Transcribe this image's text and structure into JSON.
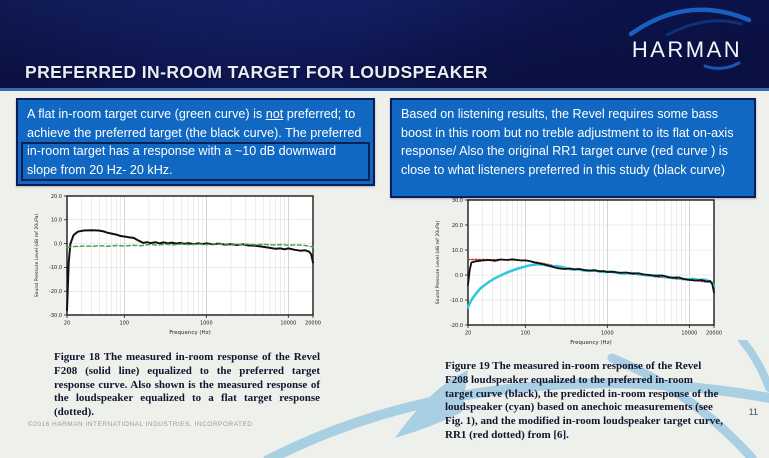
{
  "header": {
    "title": "PREFERRED IN-ROOM TARGET FOR LOUDSPEAKER",
    "brand": "HARMAN"
  },
  "callouts": {
    "left": {
      "text_before": "A flat in-room target curve (green curve) is ",
      "emphasis": "not",
      "text_after": " preferred; to achieve the preferred target (the black curve). The preferred in-room target  has a response with a ~10 dB downward slope from 20 Hz- 20 kHz."
    },
    "right": {
      "text": "Based on listening results, the Revel requires some bass boost in this room but no treble adjustment to its flat on-axis response/ Also the original RR1 target curve (red curve ) is close to what listeners preferred in this study (black curve)"
    }
  },
  "figures": [
    {
      "caption": "Figure 18 The measured in-room response of the Revel F208 (solid line) equalized to the preferred target response curve. Also shown is the measured response of the loudspeaker equalized to a flat target response (dotted)."
    },
    {
      "caption": "Figure 19 The measured in-room response of the Revel F208 loudspeaker equalized to the preferred in-room target curve (black), the predicted in-room response of the loudspeaker (cyan) based on anechoic measurements (see Fig. 1), and the modified in-room loudspeaker target curve, RR1 (red dotted) from [6]."
    }
  ],
  "footer": {
    "copyright": "©2016 HARMAN INTERNATIONAL INDUSTRIES, INCORPORATED",
    "page": "11"
  },
  "colors": {
    "header_bg": "#0c1550",
    "callout_bg": "#1068c2",
    "callout_border": "#0a1c5a",
    "accent_line": "#3a66b8",
    "swoosh": "#a9cfe3",
    "logo_arc": "#1a63c8"
  },
  "chart_data": [
    {
      "type": "line",
      "title": "",
      "xlabel": "Frequency (Hz)",
      "ylabel": "Sound Pressure Level (dB ref 20uPa)",
      "x_scale": "log",
      "xlim": [
        20,
        20000
      ],
      "ylim": [
        -30,
        20
      ],
      "x_ticks": [
        20,
        100,
        1000,
        10000,
        20000
      ],
      "y_ticks": [
        20,
        10,
        0,
        -10,
        -20,
        -30
      ],
      "grid": true,
      "legend": "none",
      "series": [
        {
          "name": "F208 equalized to preferred target (solid black)",
          "color": "#111111",
          "style": "solid",
          "width": 2,
          "points": [
            [
              20,
              -28
            ],
            [
              21,
              -8
            ],
            [
              22,
              0
            ],
            [
              24,
              3.5
            ],
            [
              27,
              5
            ],
            [
              32,
              5.5
            ],
            [
              40,
              5.6
            ],
            [
              48,
              5.5
            ],
            [
              55,
              5.2
            ],
            [
              62,
              4.6
            ],
            [
              70,
              4.2
            ],
            [
              80,
              3.8
            ],
            [
              90,
              3.2
            ],
            [
              100,
              3.0
            ],
            [
              115,
              2.6
            ],
            [
              130,
              2.4
            ],
            [
              150,
              1.2
            ],
            [
              170,
              0.3
            ],
            [
              190,
              0.6
            ],
            [
              210,
              0.2
            ],
            [
              240,
              0.6
            ],
            [
              270,
              0.1
            ],
            [
              300,
              0.5
            ],
            [
              340,
              0.1
            ],
            [
              380,
              0.4
            ],
            [
              430,
              0.0
            ],
            [
              480,
              0.3
            ],
            [
              540,
              -0.1
            ],
            [
              600,
              0.2
            ],
            [
              700,
              -0.2
            ],
            [
              800,
              0.1
            ],
            [
              900,
              -0.2
            ],
            [
              1000,
              0.1
            ],
            [
              1200,
              -0.3
            ],
            [
              1400,
              0.0
            ],
            [
              1700,
              -0.4
            ],
            [
              2000,
              -0.2
            ],
            [
              2400,
              -0.6
            ],
            [
              2800,
              -0.3
            ],
            [
              3300,
              -0.8
            ],
            [
              4000,
              -0.9
            ],
            [
              5000,
              -1.4
            ],
            [
              6000,
              -1.8
            ],
            [
              7000,
              -2.2
            ],
            [
              8000,
              -2.0
            ],
            [
              9000,
              -2.4
            ],
            [
              10000,
              -2.0
            ],
            [
              12000,
              -2.6
            ],
            [
              14000,
              -3.0
            ],
            [
              16000,
              -2.8
            ],
            [
              18000,
              -3.4
            ],
            [
              19000,
              -4.5
            ],
            [
              20000,
              -8
            ]
          ]
        },
        {
          "name": "F208 equalized to flat target (dotted green)",
          "color": "#4aa35a",
          "style": "dashed",
          "width": 1.5,
          "points": [
            [
              20,
              -1.6
            ],
            [
              25,
              -1.2
            ],
            [
              32,
              -1.0
            ],
            [
              40,
              -1.1
            ],
            [
              50,
              -0.9
            ],
            [
              63,
              -1.1
            ],
            [
              80,
              -0.8
            ],
            [
              100,
              -1.0
            ],
            [
              125,
              -0.7
            ],
            [
              160,
              -0.9
            ],
            [
              200,
              -0.4
            ],
            [
              250,
              -0.6
            ],
            [
              320,
              -0.3
            ],
            [
              400,
              -0.5
            ],
            [
              500,
              -0.2
            ],
            [
              630,
              -0.4
            ],
            [
              800,
              -0.2
            ],
            [
              1000,
              -0.4
            ],
            [
              1250,
              -0.1
            ],
            [
              1600,
              -0.3
            ],
            [
              2000,
              -0.1
            ],
            [
              2500,
              -0.4
            ],
            [
              3200,
              -0.2
            ],
            [
              4000,
              -0.5
            ],
            [
              5000,
              -0.3
            ],
            [
              6300,
              -0.6
            ],
            [
              8000,
              -0.4
            ],
            [
              10000,
              -0.7
            ],
            [
              12500,
              -0.5
            ],
            [
              16000,
              -0.8
            ],
            [
              20000,
              -1.4
            ]
          ]
        }
      ]
    },
    {
      "type": "line",
      "title": "",
      "xlabel": "Frequency (Hz)",
      "ylabel": "Sound Pressure Level (dB ref 20uPa)",
      "x_scale": "log",
      "xlim": [
        20,
        20000
      ],
      "ylim": [
        -20,
        30
      ],
      "x_ticks": [
        20,
        100,
        1000,
        10000,
        20000
      ],
      "y_ticks": [
        30,
        20,
        10,
        0,
        -10,
        -20
      ],
      "grid": true,
      "legend": "none",
      "series": [
        {
          "name": "RR1 modified in-room target (red dotted)",
          "color": "#c03020",
          "style": "dotted",
          "width": 1.6,
          "points": [
            [
              20,
              6.2
            ],
            [
              30,
              6.2
            ],
            [
              40,
              6.1
            ],
            [
              50,
              6.2
            ],
            [
              60,
              6.1
            ],
            [
              80,
              6.0
            ],
            [
              100,
              5.8
            ],
            [
              130,
              5.2
            ],
            [
              160,
              4.7
            ],
            [
              200,
              4.0
            ],
            [
              260,
              3.3
            ],
            [
              320,
              2.8
            ],
            [
              400,
              2.4
            ],
            [
              500,
              2.1
            ],
            [
              650,
              1.8
            ],
            [
              800,
              1.5
            ],
            [
              1000,
              1.2
            ],
            [
              1300,
              0.9
            ],
            [
              1600,
              0.7
            ],
            [
              2000,
              0.4
            ],
            [
              2600,
              0.0
            ],
            [
              3300,
              -0.4
            ],
            [
              4000,
              -0.7
            ],
            [
              5000,
              -1.0
            ],
            [
              6500,
              -1.4
            ],
            [
              8000,
              -1.7
            ],
            [
              10000,
              -2.0
            ],
            [
              13000,
              -2.4
            ],
            [
              16000,
              -2.7
            ],
            [
              20000,
              -3.2
            ]
          ]
        },
        {
          "name": "Predicted in-room response (cyan)",
          "color": "#35c8dc",
          "style": "solid",
          "width": 2.6,
          "points": [
            [
              20,
              -13
            ],
            [
              22,
              -10
            ],
            [
              25,
              -7.5
            ],
            [
              28,
              -5.5
            ],
            [
              32,
              -4
            ],
            [
              37,
              -2.5
            ],
            [
              43,
              -1.2
            ],
            [
              50,
              -0.2
            ],
            [
              58,
              0.8
            ],
            [
              67,
              1.6
            ],
            [
              78,
              2.4
            ],
            [
              90,
              3.0
            ],
            [
              105,
              3.6
            ],
            [
              120,
              4.0
            ],
            [
              140,
              4.3
            ],
            [
              160,
              4.2
            ],
            [
              185,
              3.8
            ],
            [
              210,
              3.4
            ],
            [
              240,
              3.6
            ],
            [
              280,
              3.2
            ],
            [
              320,
              2.6
            ],
            [
              370,
              2.2
            ],
            [
              430,
              2.4
            ],
            [
              500,
              1.9
            ],
            [
              600,
              1.6
            ],
            [
              700,
              1.8
            ],
            [
              800,
              1.4
            ],
            [
              950,
              1.2
            ],
            [
              1100,
              1.4
            ],
            [
              1300,
              0.9
            ],
            [
              1600,
              0.6
            ],
            [
              2000,
              0.8
            ],
            [
              2400,
              0.3
            ],
            [
              2900,
              0.0
            ],
            [
              3500,
              -0.3
            ],
            [
              4200,
              -0.1
            ],
            [
              5000,
              -0.7
            ],
            [
              6000,
              -1.1
            ],
            [
              7000,
              -0.9
            ],
            [
              8000,
              -1.5
            ],
            [
              9500,
              -1.8
            ],
            [
              11000,
              -1.5
            ],
            [
              13000,
              -2.0
            ],
            [
              15000,
              -1.8
            ],
            [
              17000,
              -2.3
            ],
            [
              19000,
              -3.2
            ],
            [
              20000,
              -4.5
            ]
          ]
        },
        {
          "name": "Measured in-room response equalized to preferred target (black)",
          "color": "#111111",
          "style": "solid",
          "width": 1.8,
          "points": [
            [
              20,
              -4
            ],
            [
              21,
              2
            ],
            [
              22,
              5
            ],
            [
              25,
              5.5
            ],
            [
              30,
              5.8
            ],
            [
              36,
              6.0
            ],
            [
              43,
              5.7
            ],
            [
              50,
              6.2
            ],
            [
              60,
              6.0
            ],
            [
              70,
              6.3
            ],
            [
              80,
              6.0
            ],
            [
              90,
              5.8
            ],
            [
              100,
              5.9
            ],
            [
              115,
              5.5
            ],
            [
              130,
              5.0
            ],
            [
              150,
              4.6
            ],
            [
              170,
              4.2
            ],
            [
              200,
              3.6
            ],
            [
              230,
              3.0
            ],
            [
              260,
              2.6
            ],
            [
              300,
              2.4
            ],
            [
              350,
              2.6
            ],
            [
              400,
              2.2
            ],
            [
              460,
              2.4
            ],
            [
              520,
              2.0
            ],
            [
              600,
              1.8
            ],
            [
              700,
              1.9
            ],
            [
              800,
              1.5
            ],
            [
              900,
              1.6
            ],
            [
              1000,
              1.2
            ],
            [
              1200,
              1.3
            ],
            [
              1400,
              0.9
            ],
            [
              1700,
              1.0
            ],
            [
              2000,
              0.6
            ],
            [
              2400,
              0.7
            ],
            [
              2800,
              0.2
            ],
            [
              3300,
              0.0
            ],
            [
              4000,
              -0.4
            ],
            [
              4700,
              -0.2
            ],
            [
              5500,
              -0.8
            ],
            [
              6500,
              -1.2
            ],
            [
              7500,
              -1.0
            ],
            [
              8500,
              -1.6
            ],
            [
              10000,
              -1.9
            ],
            [
              12000,
              -2.2
            ],
            [
              14000,
              -2.0
            ],
            [
              16000,
              -2.6
            ],
            [
              18000,
              -2.4
            ],
            [
              19000,
              -3.5
            ],
            [
              20000,
              -7
            ]
          ]
        }
      ]
    }
  ]
}
